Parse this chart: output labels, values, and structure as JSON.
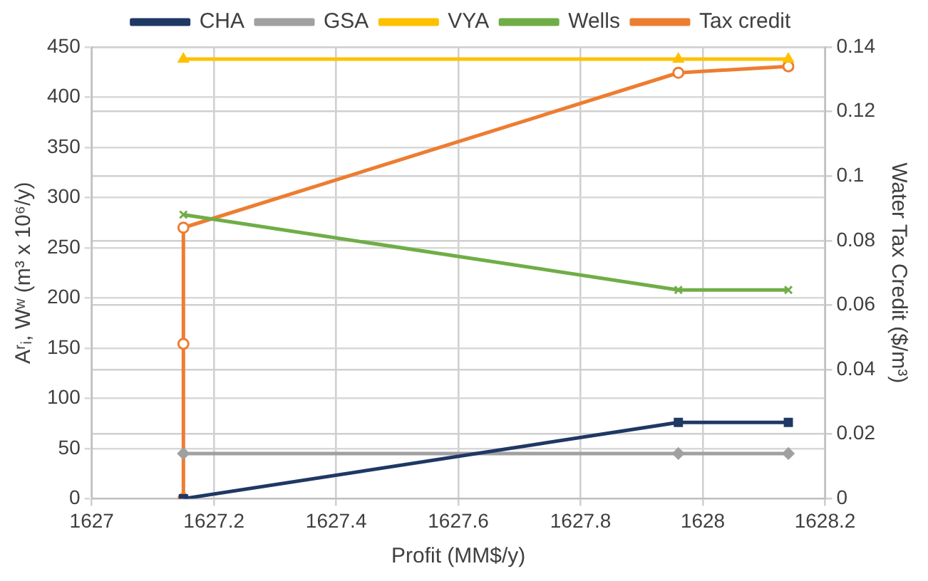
{
  "chart_data": {
    "type": "line",
    "xlabel": "Profit (MM$/y)",
    "ylabel": "Aʳᵢ, Wʷ (m³ x 10⁶/y)",
    "y2label": "Water Tax Credit ($/m³)",
    "xlim": [
      1627,
      1628.2
    ],
    "xticks": [
      1627,
      1627.2,
      1627.4,
      1627.6,
      1627.8,
      1628,
      1628.2
    ],
    "ylim": [
      0,
      450
    ],
    "yticks": [
      0,
      50,
      100,
      150,
      200,
      250,
      300,
      350,
      400,
      450
    ],
    "y2lim": [
      0,
      0.14
    ],
    "y2ticks": [
      0,
      0.02,
      0.04,
      0.06,
      0.08,
      0.1,
      0.12,
      0.14
    ],
    "grid": true,
    "legend": "top",
    "line_style": "solid",
    "series": [
      {
        "name": "CHA",
        "color": "#1f3864",
        "marker": "square",
        "x": [
          1627.15,
          1627.96,
          1628.14
        ],
        "values": [
          0,
          76,
          76
        ]
      },
      {
        "name": "GSA",
        "color": "#a0a0a0",
        "marker": "diamond",
        "x": [
          1627.15,
          1627.96,
          1628.14
        ],
        "values": [
          45,
          45,
          45
        ]
      },
      {
        "name": "VYA",
        "color": "#ffc000",
        "marker": "triangle",
        "x": [
          1627.15,
          1627.96,
          1628.14
        ],
        "values": [
          438,
          438,
          438
        ]
      },
      {
        "name": "Wells",
        "color": "#70ad47",
        "marker": "cross",
        "x": [
          1627.15,
          1627.96,
          1628.14
        ],
        "values": [
          283,
          208,
          208
        ]
      },
      {
        "name": "Tax credit",
        "color": "#ed7d31",
        "marker": "circle",
        "axis": "y2",
        "x": [
          1627.15,
          1627.15,
          1627.15,
          1627.96,
          1628.14
        ],
        "values": [
          0,
          0.048,
          0.084,
          0.132,
          0.134
        ]
      }
    ]
  }
}
